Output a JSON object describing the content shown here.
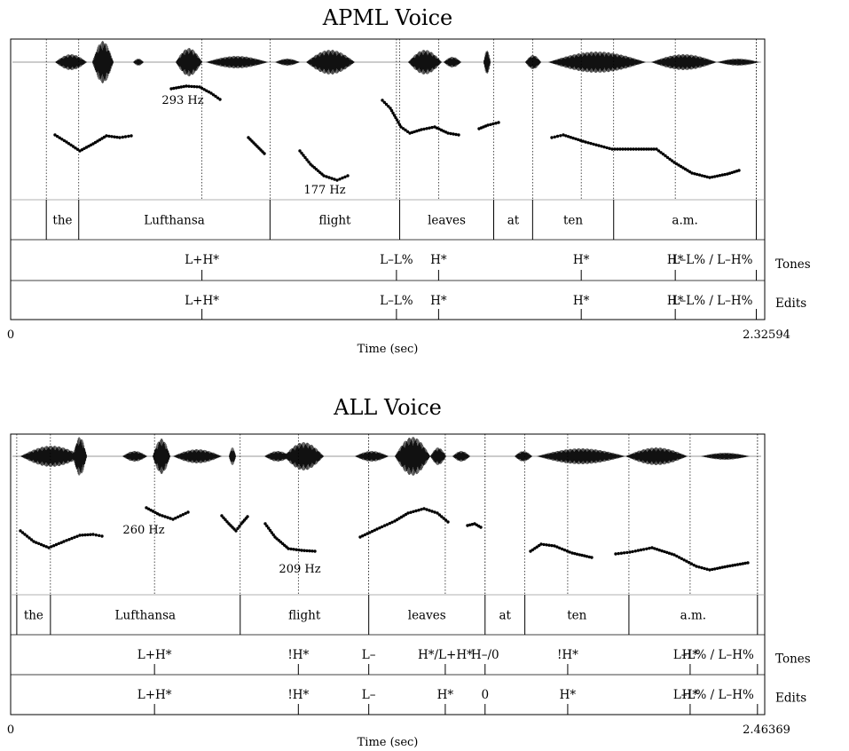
{
  "panels": [
    {
      "id": "apml",
      "title": "APML Voice",
      "pitch_labels": [
        "293 Hz",
        "177 Hz"
      ],
      "words": [
        "the",
        "Lufthansa",
        "flight",
        "leaves",
        "at",
        "ten",
        "a.m."
      ],
      "word_boundaries_sec": [
        0.11,
        0.21,
        0.8,
        1.2,
        1.49,
        1.61,
        1.86,
        2.3
      ],
      "accent_marks_sec": [
        0.59,
        1.19,
        1.32,
        1.76,
        2.05,
        2.3
      ],
      "tones_labels": [
        "L+H*",
        "L–L%",
        "H*",
        "H*",
        "H*",
        "L–L% / L–H%"
      ],
      "edits_labels": [
        "L+H*",
        "L–L%",
        "H*",
        "H*",
        "H*",
        "L–L% / L–H%"
      ],
      "tier_names": [
        "Tones",
        "Edits"
      ],
      "time_axis": {
        "start": "0",
        "end": "2.32594",
        "label": "Time (sec)"
      },
      "duration_sec": 2.32594
    },
    {
      "id": "all",
      "title": "ALL Voice",
      "pitch_labels": [
        "260 Hz",
        "209 Hz"
      ],
      "words": [
        "the",
        "Lufthansa",
        "flight",
        "leaves",
        "at",
        "ten",
        "a.m."
      ],
      "word_boundaries_sec": [
        0.02,
        0.13,
        0.75,
        1.17,
        1.55,
        1.68,
        2.02,
        2.44
      ],
      "accent_marks_sec": [
        0.47,
        0.94,
        1.17,
        1.42,
        1.55,
        1.82,
        2.22,
        2.44
      ],
      "tones_labels": [
        "L+H*",
        "!H*",
        "L–",
        "H*/L+H*",
        "H–/0",
        "!H*",
        "H*",
        "L–L% / L–H%"
      ],
      "edits_labels": [
        "L+H*",
        "!H*",
        "L–",
        "H*",
        "0",
        "H*",
        "H*",
        "L–L% / L–H%"
      ],
      "tier_names": [
        "Tones",
        "Edits"
      ],
      "time_axis": {
        "start": "0",
        "end": "2.46369",
        "label": "Time (sec)"
      },
      "duration_sec": 2.46369
    }
  ]
}
